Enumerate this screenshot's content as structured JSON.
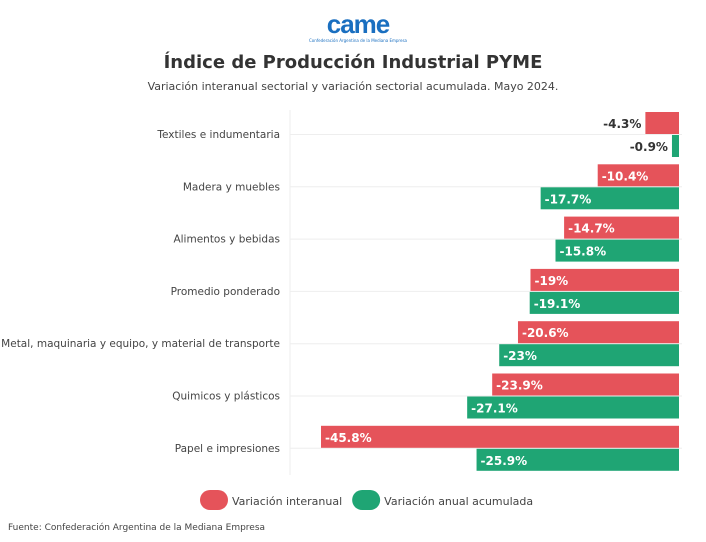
{
  "logo": {
    "text": "came",
    "subtext": "Confederación Argentina de la Mediana Empresa"
  },
  "title": "Índice de Producción Industrial PYME",
  "subtitle": "Variación interanual sectorial y variación sectorial acumulada. Mayo 2024.",
  "source": "Fuente: Confederación Argentina de la Mediana Empresa",
  "chart_data": {
    "type": "bar",
    "orientation": "horizontal",
    "categories": [
      "Textiles e indumentaria",
      "Madera y muebles",
      "Alimentos y bebidas",
      "Promedio ponderado",
      "Metal, maquinaria y equipo, y material de transporte",
      "Quimicos y plásticos",
      "Papel e impresiones"
    ],
    "series": [
      {
        "name": "Variación interanual",
        "color": "#e5535a",
        "values": [
          -4.3,
          -10.4,
          -14.7,
          -19,
          -20.6,
          -23.9,
          -45.8
        ],
        "labels": [
          "-4.3%",
          "-10.4%",
          "-14.7%",
          "-19%",
          "-20.6%",
          "-23.9%",
          "-45.8%"
        ]
      },
      {
        "name": "Variación anual acumulada",
        "color": "#1fa574",
        "values": [
          -0.9,
          -17.7,
          -15.8,
          -19.1,
          -23,
          -27.1,
          -25.9
        ],
        "labels": [
          "-0.9%",
          "-17.7%",
          "-15.8%",
          "-19.1%",
          "-23%",
          "-27.1%",
          "-25.9%"
        ]
      }
    ],
    "xlim": [
      -50,
      0
    ],
    "grid": true,
    "legend": "bottom"
  }
}
